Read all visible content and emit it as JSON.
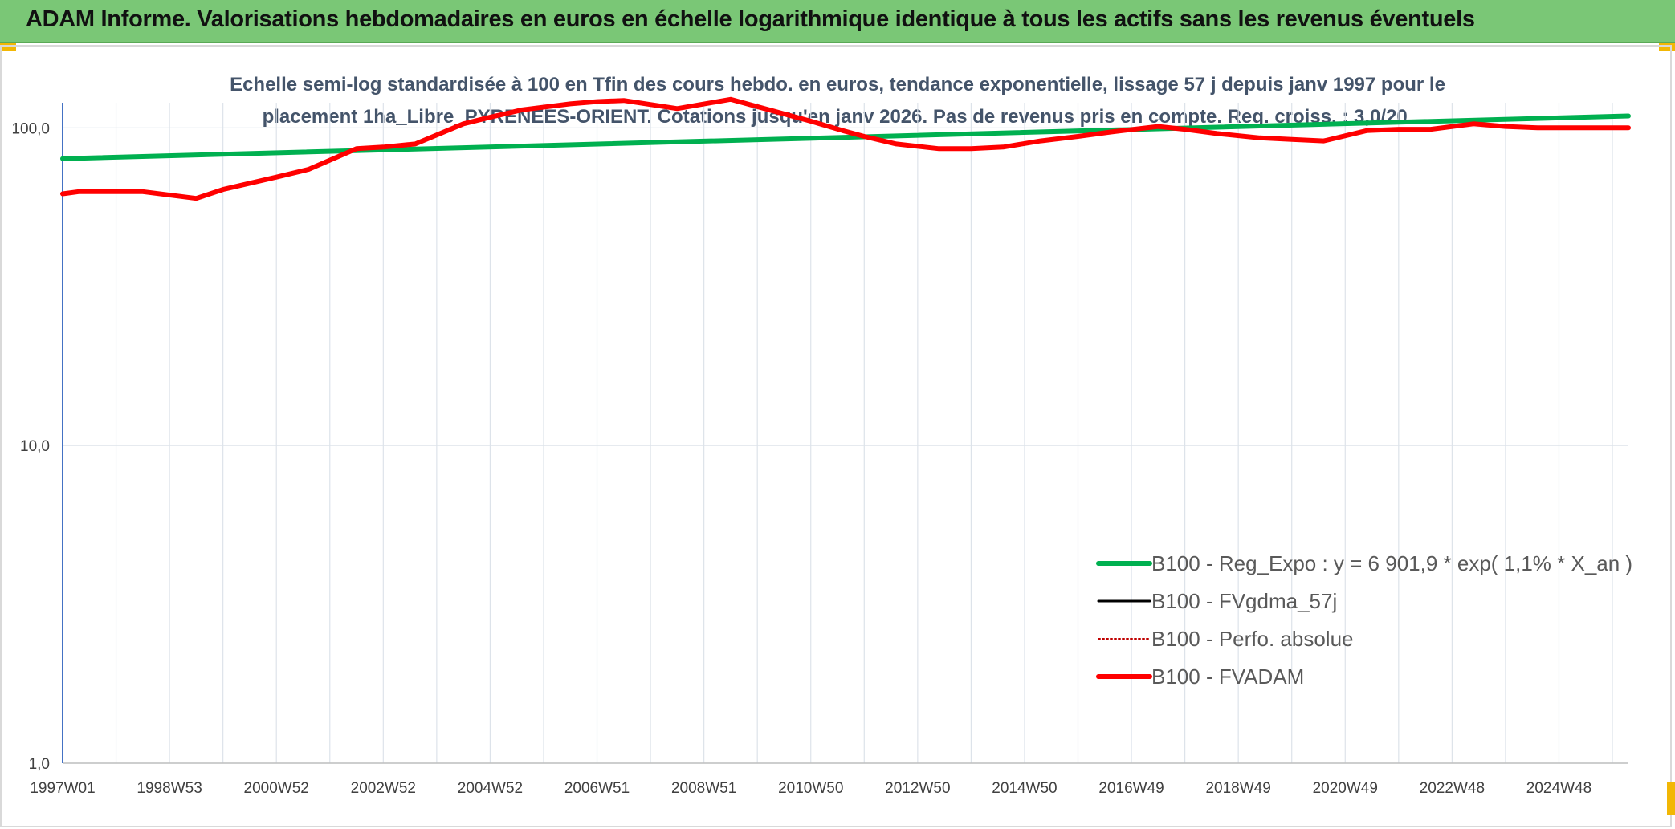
{
  "banner": {
    "title": "ADAM Informe. Valorisations hebdomadaires en euros en échelle logarithmique identique à tous les actifs sans les revenus éventuels"
  },
  "colors": {
    "banner_bg": "#7ac776",
    "accent": "#f2b705",
    "regression": "#00b050",
    "fvadam": "#ff0000",
    "fvgdma": "#000000",
    "perfo": "#c00000",
    "title_text": "#44546a"
  },
  "chart_data": {
    "type": "line",
    "title_lines": [
      "Echelle semi-log standardisée à 100 en Tfin des cours hebdo. en euros, tendance exponentielle, lissage 57 j depuis janv 1997 pour le",
      "placement 1ha_Libre_PYRENEES-ORIENT. Cotations jusqu'en janv 2026. Pas de revenus pris en compte. Reg. croiss. : 3,0/20."
    ],
    "y_scale": "log",
    "ylim": [
      1,
      100
    ],
    "y_ticks": [
      {
        "value": 1,
        "label": "1,0"
      },
      {
        "value": 10,
        "label": "10,0"
      },
      {
        "value": 100,
        "label": "100,0"
      }
    ],
    "x_range": [
      1997.0,
      2026.3
    ],
    "x_ticks": [
      {
        "t": 1997.0,
        "label": "1997W01"
      },
      {
        "t": 1999.0,
        "label": "1998W53"
      },
      {
        "t": 2001.0,
        "label": "2000W52"
      },
      {
        "t": 2003.0,
        "label": "2002W52"
      },
      {
        "t": 2005.0,
        "label": "2004W52"
      },
      {
        "t": 2007.0,
        "label": "2006W51"
      },
      {
        "t": 2009.0,
        "label": "2008W51"
      },
      {
        "t": 2011.0,
        "label": "2010W50"
      },
      {
        "t": 2013.0,
        "label": "2012W50"
      },
      {
        "t": 2015.0,
        "label": "2014W50"
      },
      {
        "t": 2017.0,
        "label": "2016W49"
      },
      {
        "t": 2019.0,
        "label": "2018W49"
      },
      {
        "t": 2021.0,
        "label": "2020W49"
      },
      {
        "t": 2023.0,
        "label": "2022W48"
      },
      {
        "t": 2025.0,
        "label": "2024W48"
      }
    ],
    "grid_x": true,
    "grid_y": true,
    "legend_position": "bottom-right",
    "series": [
      {
        "name": "B100 - Reg_Expo : y = 6 901,9 * exp( 1,1% *  X_an )",
        "color": "#00b050",
        "style": "solid-thick",
        "points": [
          [
            1997.0,
            80.0
          ],
          [
            2026.3,
            109.0
          ]
        ]
      },
      {
        "name": "B100 - FVgdma_57j",
        "color": "#000000",
        "style": "solid",
        "points": []
      },
      {
        "name": "B100 - Perfo. absolue",
        "color": "#c00000",
        "style": "dotted",
        "points": []
      },
      {
        "name": "B100 - FVADAM",
        "color": "#ff0000",
        "style": "solid-thick",
        "points": [
          [
            1997.0,
            62
          ],
          [
            1997.3,
            63
          ],
          [
            1998.5,
            63
          ],
          [
            1999.5,
            60
          ],
          [
            2000.0,
            64
          ],
          [
            2001.0,
            70
          ],
          [
            2001.6,
            74
          ],
          [
            2002.5,
            86
          ],
          [
            2003.0,
            87
          ],
          [
            2003.6,
            89
          ],
          [
            2004.5,
            103
          ],
          [
            2005.0,
            108
          ],
          [
            2005.6,
            114
          ],
          [
            2006.5,
            119
          ],
          [
            2007.0,
            121
          ],
          [
            2007.5,
            122
          ],
          [
            2008.5,
            115
          ],
          [
            2009.5,
            123
          ],
          [
            2010.3,
            113
          ],
          [
            2011.0,
            105
          ],
          [
            2011.6,
            98
          ],
          [
            2012.0,
            94
          ],
          [
            2012.6,
            89
          ],
          [
            2013.4,
            86
          ],
          [
            2014.0,
            86
          ],
          [
            2014.6,
            87
          ],
          [
            2015.3,
            91
          ],
          [
            2016.0,
            94
          ],
          [
            2016.6,
            97
          ],
          [
            2017.5,
            101
          ],
          [
            2018.0,
            99
          ],
          [
            2018.6,
            96
          ],
          [
            2019.4,
            93
          ],
          [
            2020.0,
            92
          ],
          [
            2020.6,
            91
          ],
          [
            2021.4,
            98
          ],
          [
            2022.0,
            99
          ],
          [
            2022.6,
            99
          ],
          [
            2023.4,
            103
          ],
          [
            2024.0,
            101
          ],
          [
            2024.6,
            100
          ],
          [
            2025.5,
            100
          ],
          [
            2026.3,
            100
          ]
        ]
      }
    ]
  }
}
